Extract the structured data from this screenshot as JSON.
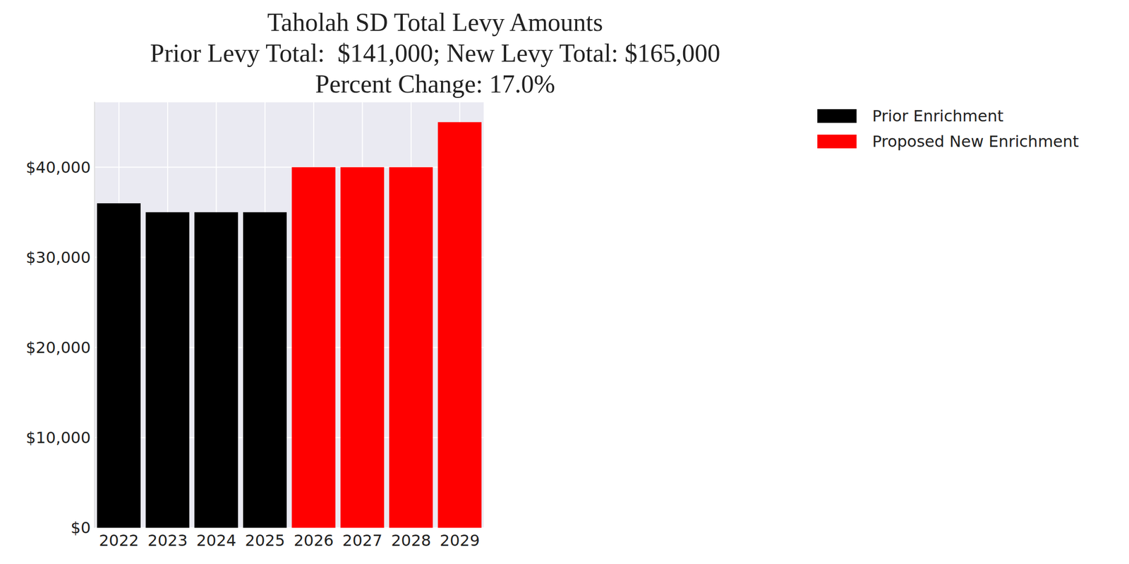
{
  "chart_data": {
    "type": "bar",
    "title": "Taholah SD Total Levy Amounts\nPrior Levy Total:  $141,000; New Levy Total: $165,000\nPercent Change: 17.0%",
    "categories": [
      "2022",
      "2023",
      "2024",
      "2025",
      "2026",
      "2027",
      "2028",
      "2029"
    ],
    "series": [
      {
        "name": "Prior Enrichment",
        "color": "#000000",
        "values": [
          36000,
          35000,
          35000,
          35000,
          null,
          null,
          null,
          null
        ]
      },
      {
        "name": "Proposed New Enrichment",
        "color": "#ff0000",
        "values": [
          null,
          null,
          null,
          null,
          40000,
          40000,
          40000,
          45000
        ]
      }
    ],
    "stacked": true,
    "ylim": [
      0,
      47250
    ],
    "yticks": [
      {
        "value": 0,
        "label": "$0"
      },
      {
        "value": 10000,
        "label": "$10,000"
      },
      {
        "value": 20000,
        "label": "$20,000"
      },
      {
        "value": 30000,
        "label": "$30,000"
      },
      {
        "value": 40000,
        "label": "$40,000"
      }
    ],
    "grid": true,
    "legend": "right"
  }
}
